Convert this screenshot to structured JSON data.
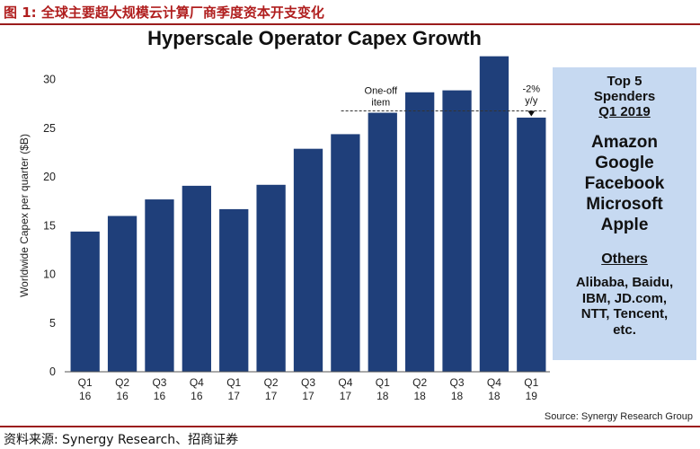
{
  "figure": {
    "title": "图 1:  全球主要超大规模云计算厂商季度资本开支变化",
    "footer": "资料来源: Synergy Research、招商证券",
    "source": "Source:  Synergy Research  Group"
  },
  "sidebar": {
    "heading": [
      "Top 5",
      "Spenders"
    ],
    "period": "Q1 2019",
    "top5": [
      "Amazon",
      "Google",
      "Facebook",
      "Microsoft",
      "Apple"
    ],
    "others_label": "Others",
    "others": [
      "Alibaba, Baidu,",
      "IBM, JD.com,",
      "NTT, Tencent,",
      "etc."
    ]
  },
  "chart_data": {
    "type": "bar",
    "title": "Hyperscale Operator Capex Growth",
    "ylabel": "Worldwide Capex per quarter ($B)",
    "xlabel": "",
    "ylim": [
      0,
      32
    ],
    "yticks": [
      0,
      5,
      10,
      15,
      20,
      25,
      30
    ],
    "categories": [
      [
        "Q1",
        "16"
      ],
      [
        "Q2",
        "16"
      ],
      [
        "Q3",
        "16"
      ],
      [
        "Q4",
        "16"
      ],
      [
        "Q1",
        "17"
      ],
      [
        "Q2",
        "17"
      ],
      [
        "Q3",
        "17"
      ],
      [
        "Q4",
        "17"
      ],
      [
        "Q1",
        "18"
      ],
      [
        "Q2",
        "18"
      ],
      [
        "Q3",
        "18"
      ],
      [
        "Q4",
        "18"
      ],
      [
        "Q1",
        "19"
      ]
    ],
    "values": [
      14.4,
      16.0,
      17.7,
      19.1,
      16.7,
      19.2,
      22.9,
      24.4,
      26.6,
      28.7,
      28.9,
      32.4,
      26.1
    ],
    "bar_color": "#1f3f7a",
    "annotations": [
      {
        "text": [
          "One-off",
          "item"
        ],
        "category_index": 8
      },
      {
        "text": [
          "-2%",
          "y/y"
        ],
        "category_index": 12
      }
    ],
    "reference_line": {
      "value": 26.6,
      "style": "dashed"
    }
  }
}
